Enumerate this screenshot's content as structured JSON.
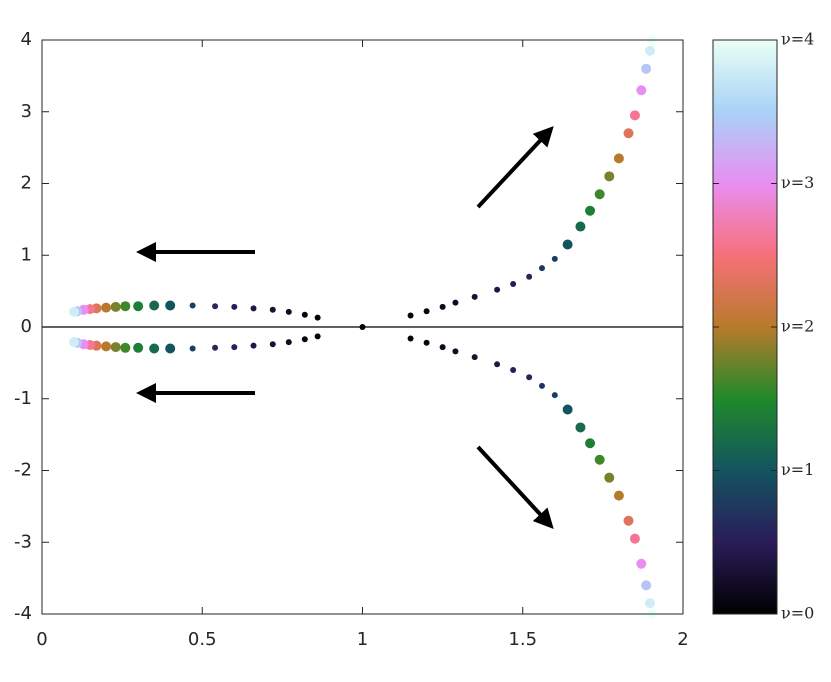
{
  "chart_data": {
    "type": "scatter",
    "xlim": [
      0,
      2
    ],
    "ylim": [
      -4,
      4
    ],
    "xticks": [
      0,
      0.5,
      1,
      1.5,
      2
    ],
    "yticks": [
      -4,
      -3,
      -2,
      -1,
      0,
      1,
      2,
      3,
      4
    ],
    "clim": [
      0,
      4
    ],
    "cticks": [
      {
        "value": 0,
        "label": "ν=0"
      },
      {
        "value": 1,
        "label": "ν=1"
      },
      {
        "value": 2,
        "label": "ν=2"
      },
      {
        "value": 3,
        "label": "ν=3"
      },
      {
        "value": 4,
        "label": "ν=4"
      }
    ],
    "colormap": [
      "#000000",
      "#2a1c5a",
      "#135460",
      "#1f8a2a",
      "#b87a2a",
      "#f7707a",
      "#e88ef2",
      "#a9d2f7",
      "#eafff5"
    ],
    "series": [
      {
        "x": [
          1.15,
          1.2,
          1.25,
          1.29,
          1.35,
          1.42,
          1.47,
          1.52,
          1.56,
          1.6,
          1.64,
          1.68,
          1.71,
          1.74,
          1.77,
          1.8,
          1.83,
          1.85,
          1.87,
          1.885,
          1.897,
          1.903
        ],
        "y": [
          0.16,
          0.22,
          0.28,
          0.34,
          0.42,
          0.52,
          0.6,
          0.7,
          0.82,
          0.95,
          1.15,
          1.4,
          1.62,
          1.85,
          2.1,
          2.35,
          2.7,
          2.95,
          3.3,
          3.6,
          3.85,
          4.0
        ],
        "c": [
          0.05,
          0.1,
          0.15,
          0.2,
          0.3,
          0.4,
          0.5,
          0.6,
          0.7,
          0.8,
          1.0,
          1.2,
          1.4,
          1.6,
          1.8,
          2.0,
          2.3,
          2.6,
          3.0,
          3.4,
          3.8,
          4.0
        ]
      },
      {
        "x": [
          1.15,
          1.2,
          1.25,
          1.29,
          1.35,
          1.42,
          1.47,
          1.52,
          1.56,
          1.6,
          1.64,
          1.68,
          1.71,
          1.74,
          1.77,
          1.8,
          1.83,
          1.85,
          1.87,
          1.885,
          1.897,
          1.903
        ],
        "y": [
          -0.16,
          -0.22,
          -0.28,
          -0.34,
          -0.42,
          -0.52,
          -0.6,
          -0.7,
          -0.82,
          -0.95,
          -1.15,
          -1.4,
          -1.62,
          -1.85,
          -2.1,
          -2.35,
          -2.7,
          -2.95,
          -3.3,
          -3.6,
          -3.85,
          -4.0
        ],
        "c": [
          0.05,
          0.1,
          0.15,
          0.2,
          0.3,
          0.4,
          0.5,
          0.6,
          0.7,
          0.8,
          1.0,
          1.2,
          1.4,
          1.6,
          1.8,
          2.0,
          2.3,
          2.6,
          3.0,
          3.4,
          3.8,
          4.0
        ]
      },
      {
        "x": [
          0.86,
          0.82,
          0.77,
          0.72,
          0.66,
          0.6,
          0.54,
          0.47,
          0.4,
          0.35,
          0.3,
          0.26,
          0.23,
          0.2,
          0.17,
          0.15,
          0.13,
          0.11,
          0.1
        ],
        "y": [
          0.13,
          0.17,
          0.21,
          0.24,
          0.26,
          0.28,
          0.29,
          0.3,
          0.3,
          0.3,
          0.29,
          0.29,
          0.28,
          0.27,
          0.26,
          0.25,
          0.24,
          0.22,
          0.21
        ],
        "c": [
          0.05,
          0.1,
          0.2,
          0.3,
          0.4,
          0.5,
          0.6,
          0.8,
          1.0,
          1.2,
          1.4,
          1.6,
          1.8,
          2.0,
          2.3,
          2.6,
          3.0,
          3.4,
          3.8
        ]
      },
      {
        "x": [
          0.86,
          0.82,
          0.77,
          0.72,
          0.66,
          0.6,
          0.54,
          0.47,
          0.4,
          0.35,
          0.3,
          0.26,
          0.23,
          0.2,
          0.17,
          0.15,
          0.13,
          0.11,
          0.1
        ],
        "y": [
          -0.13,
          -0.17,
          -0.21,
          -0.24,
          -0.26,
          -0.28,
          -0.29,
          -0.3,
          -0.3,
          -0.3,
          -0.29,
          -0.29,
          -0.28,
          -0.27,
          -0.26,
          -0.25,
          -0.24,
          -0.22,
          -0.21
        ],
        "c": [
          0.05,
          0.1,
          0.2,
          0.3,
          0.4,
          0.5,
          0.6,
          0.8,
          1.0,
          1.2,
          1.4,
          1.6,
          1.8,
          2.0,
          2.3,
          2.6,
          3.0,
          3.4,
          3.8
        ]
      },
      {
        "x": [
          1
        ],
        "y": [
          0
        ],
        "c": [
          0
        ]
      }
    ]
  }
}
